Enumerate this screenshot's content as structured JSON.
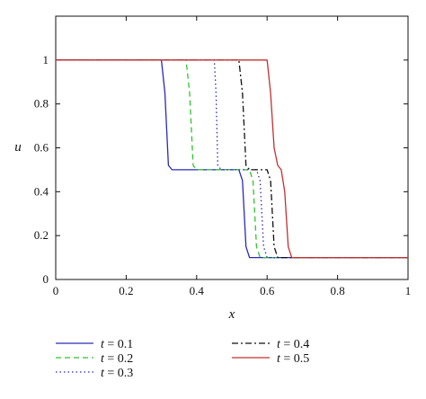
{
  "chart_data": {
    "type": "line",
    "xlabel": "x",
    "ylabel": "u",
    "xlim": [
      0,
      1
    ],
    "ylim": [
      0,
      1.2
    ],
    "x_ticks": [
      "0",
      "0.2",
      "0.4",
      "0.6",
      "0.8",
      "1"
    ],
    "y_ticks": [
      "0",
      "0.2",
      "0.4",
      "0.6",
      "0.8",
      "1"
    ],
    "grid": false,
    "legend_placement": "bottom",
    "series": [
      {
        "name": "t = 0.1",
        "var": "t",
        "label_rest": " = 0.1",
        "color": "#2a2ab8",
        "dash": "solid",
        "x": [
          0,
          0.3,
          0.31,
          0.32,
          0.33,
          0.52,
          0.53,
          0.54,
          0.55,
          1
        ],
        "y": [
          1,
          1,
          0.85,
          0.52,
          0.5,
          0.5,
          0.45,
          0.15,
          0.1,
          0.1
        ]
      },
      {
        "name": "t = 0.2",
        "var": "t",
        "label_rest": " = 0.2",
        "color": "#2fc42f",
        "dash": "dashed",
        "x": [
          0,
          0.37,
          0.38,
          0.39,
          0.4,
          0.55,
          0.56,
          0.57,
          0.58,
          1
        ],
        "y": [
          1,
          1,
          0.85,
          0.52,
          0.5,
          0.5,
          0.45,
          0.15,
          0.1,
          0.1
        ]
      },
      {
        "name": "t = 0.3",
        "var": "t",
        "label_rest": " = 0.3",
        "color": "#2a2ab8",
        "dash": "dotted",
        "x": [
          0,
          0.45,
          0.455,
          0.46,
          0.47,
          0.57,
          0.58,
          0.59,
          0.6,
          1
        ],
        "y": [
          1,
          1,
          0.85,
          0.52,
          0.5,
          0.5,
          0.45,
          0.15,
          0.1,
          0.1
        ]
      },
      {
        "name": "t = 0.4",
        "var": "t",
        "label_rest": " = 0.4",
        "color": "#111111",
        "dash": "dashdot",
        "x": [
          0,
          0.52,
          0.53,
          0.54,
          0.55,
          0.6,
          0.61,
          0.62,
          0.63,
          1
        ],
        "y": [
          1,
          1,
          0.85,
          0.52,
          0.5,
          0.5,
          0.45,
          0.15,
          0.1,
          0.1
        ]
      },
      {
        "name": "t = 0.5",
        "var": "t",
        "label_rest": " = 0.5",
        "color": "#c43030",
        "dash": "solid",
        "x": [
          0,
          0.6,
          0.61,
          0.62,
          0.63,
          0.64,
          0.65,
          0.66,
          0.67,
          1
        ],
        "y": [
          1,
          1,
          0.85,
          0.6,
          0.52,
          0.5,
          0.4,
          0.15,
          0.1,
          0.1
        ]
      }
    ]
  }
}
